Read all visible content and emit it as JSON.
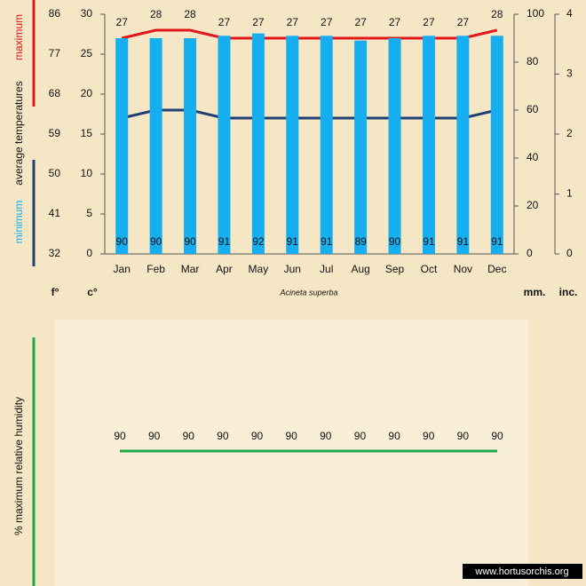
{
  "chart_data": [
    {
      "type": "bar_line",
      "subtitle": "Acineta superba",
      "ylabel": "average  temperatures",
      "ylabel_unit": "c°",
      "y3label_unit": "f°",
      "y2label_unit": "mm.",
      "y4label_unit": "inc.",
      "categories": [
        "Jan",
        "Feb",
        "Mar",
        "Apr",
        "May",
        "Jun",
        "Jul",
        "Aug",
        "Sep",
        "Oct",
        "Nov",
        "Dec"
      ],
      "ylim": [
        0,
        30
      ],
      "yticks": [
        0,
        5,
        10,
        15,
        20,
        25,
        30
      ],
      "y2lim": [
        0,
        100
      ],
      "y2ticks": [
        0,
        20,
        40,
        60,
        80,
        100
      ],
      "y3lim": [
        32,
        86
      ],
      "y3ticks": [
        32,
        41,
        50,
        59,
        68,
        77,
        86
      ],
      "y4lim": [
        0,
        4
      ],
      "y4ticks": [
        0,
        1,
        2,
        3,
        4
      ],
      "series": [
        {
          "name": "maximum",
          "color": "#e3161c",
          "type": "line",
          "values": [
            27,
            28,
            28,
            27,
            27,
            27,
            27,
            27,
            27,
            27,
            27,
            28
          ]
        },
        {
          "name": "minimum",
          "color": "#1f3f72",
          "type": "line",
          "values": [
            17,
            18,
            18,
            17,
            17,
            17,
            17,
            17,
            17,
            17,
            17,
            18
          ]
        },
        {
          "color": "#16aeef",
          "type": "bar",
          "axis": "y2",
          "values": [
            90,
            90,
            90,
            91,
            92,
            91,
            91,
            89,
            90,
            91,
            91,
            91
          ]
        }
      ]
    },
    {
      "type": "line",
      "ylabel": "%  maximum relative humidity",
      "watermark": "www.hortusorchis.org",
      "series": [
        {
          "color": "#22a84a",
          "values": [
            90,
            90,
            90,
            90,
            90,
            90,
            90,
            90,
            90,
            90,
            90,
            90
          ]
        }
      ]
    }
  ]
}
